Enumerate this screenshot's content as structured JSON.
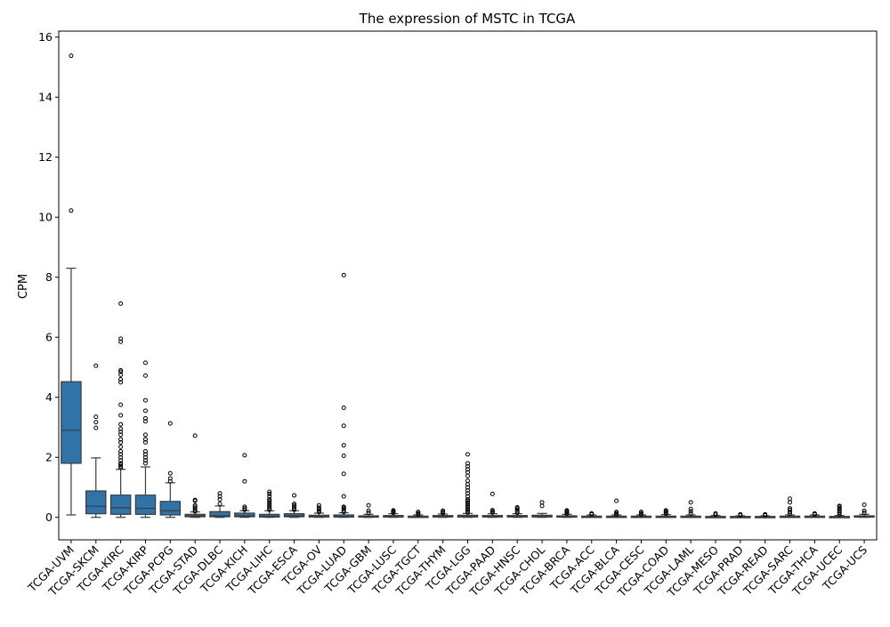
{
  "chart_data": {
    "type": "boxplot",
    "title": "The expression of MSTC in TCGA",
    "xlabel": "",
    "ylabel": "CPM",
    "ylim": [
      -0.75,
      16.2
    ],
    "yticks": [
      0,
      2,
      4,
      6,
      8,
      10,
      12,
      14,
      16
    ],
    "grid": false,
    "legend": "none",
    "box_color": "#2f73a8",
    "categories": [
      "TCGA-UVM",
      "TCGA-SKCM",
      "TCGA-KIRC",
      "TCGA-KIRP",
      "TCGA-PCPG",
      "TCGA-STAD",
      "TCGA-DLBC",
      "TCGA-KICH",
      "TCGA-LIHC",
      "TCGA-ESCA",
      "TCGA-OV",
      "TCGA-LUAD",
      "TCGA-GBM",
      "TCGA-LUSC",
      "TCGA-TGCT",
      "TCGA-THYM",
      "TCGA-LGG",
      "TCGA-PAAD",
      "TCGA-HNSC",
      "TCGA-CHOL",
      "TCGA-BRCA",
      "TCGA-ACC",
      "TCGA-BLCA",
      "TCGA-CESC",
      "TCGA-COAD",
      "TCGA-LAML",
      "TCGA-MESO",
      "TCGA-PRAD",
      "TCGA-READ",
      "TCGA-SARC",
      "TCGA-THCA",
      "TCGA-UCEC",
      "TCGA-UCS"
    ],
    "boxes": [
      {
        "min": 0.08,
        "q1": 1.8,
        "median": 2.9,
        "q3": 4.52,
        "max": 8.3,
        "outliers": [
          10.22,
          15.38
        ]
      },
      {
        "min": 0.0,
        "q1": 0.12,
        "median": 0.37,
        "q3": 0.88,
        "max": 1.98,
        "outliers": [
          2.98,
          3.17,
          3.35,
          5.05
        ]
      },
      {
        "min": 0.0,
        "q1": 0.1,
        "median": 0.32,
        "q3": 0.74,
        "max": 1.6,
        "outliers": [
          1.65,
          1.7,
          1.75,
          1.8,
          1.9,
          2.0,
          2.1,
          2.2,
          2.35,
          2.5,
          2.6,
          2.75,
          2.85,
          2.95,
          3.1,
          3.4,
          3.75,
          4.5,
          4.6,
          4.75,
          4.85,
          4.9,
          5.85,
          5.95,
          7.12
        ]
      },
      {
        "min": 0.0,
        "q1": 0.1,
        "median": 0.3,
        "q3": 0.74,
        "max": 1.68,
        "outliers": [
          1.8,
          1.9,
          2.0,
          2.1,
          2.2,
          2.5,
          2.6,
          2.75,
          3.2,
          3.3,
          3.55,
          3.9,
          4.72,
          5.15
        ]
      },
      {
        "min": 0.0,
        "q1": 0.08,
        "median": 0.22,
        "q3": 0.53,
        "max": 1.15,
        "outliers": [
          1.2,
          1.3,
          1.47,
          3.13
        ]
      },
      {
        "min": 0.0,
        "q1": 0.02,
        "median": 0.05,
        "q3": 0.1,
        "max": 0.18,
        "outliers": [
          0.2,
          0.25,
          0.3,
          0.35,
          0.4,
          0.55,
          0.58,
          2.72
        ]
      },
      {
        "min": 0.0,
        "q1": 0.02,
        "median": 0.05,
        "q3": 0.19,
        "max": 0.38,
        "outliers": [
          0.45,
          0.6,
          0.7,
          0.8
        ]
      },
      {
        "min": 0.0,
        "q1": 0.02,
        "median": 0.05,
        "q3": 0.14,
        "max": 0.22,
        "outliers": [
          0.25,
          0.3,
          0.35,
          1.2,
          2.07
        ]
      },
      {
        "min": 0.0,
        "q1": 0.01,
        "median": 0.04,
        "q3": 0.1,
        "max": 0.22,
        "outliers": [
          0.25,
          0.3,
          0.35,
          0.4,
          0.45,
          0.5,
          0.55,
          0.6,
          0.7,
          0.78,
          0.85
        ]
      },
      {
        "min": 0.0,
        "q1": 0.02,
        "median": 0.05,
        "q3": 0.12,
        "max": 0.22,
        "outliers": [
          0.25,
          0.3,
          0.35,
          0.4,
          0.45,
          0.73
        ]
      },
      {
        "min": 0.0,
        "q1": 0.01,
        "median": 0.03,
        "q3": 0.07,
        "max": 0.14,
        "outliers": [
          0.18,
          0.22,
          0.27,
          0.32,
          0.4
        ]
      },
      {
        "min": 0.0,
        "q1": 0.01,
        "median": 0.03,
        "q3": 0.08,
        "max": 0.15,
        "outliers": [
          0.18,
          0.22,
          0.28,
          0.32,
          0.35,
          0.7,
          1.45,
          2.05,
          2.4,
          3.05,
          3.65,
          8.07
        ]
      },
      {
        "min": 0.0,
        "q1": 0.01,
        "median": 0.02,
        "q3": 0.05,
        "max": 0.1,
        "outliers": [
          0.15,
          0.22,
          0.4
        ]
      },
      {
        "min": 0.0,
        "q1": 0.01,
        "median": 0.03,
        "q3": 0.06,
        "max": 0.12,
        "outliers": [
          0.15,
          0.18,
          0.2,
          0.23
        ]
      },
      {
        "min": 0.0,
        "q1": 0.01,
        "median": 0.02,
        "q3": 0.04,
        "max": 0.08,
        "outliers": [
          0.1,
          0.14,
          0.18
        ]
      },
      {
        "min": 0.0,
        "q1": 0.01,
        "median": 0.03,
        "q3": 0.06,
        "max": 0.11,
        "outliers": [
          0.14,
          0.18,
          0.22
        ]
      },
      {
        "min": 0.0,
        "q1": 0.01,
        "median": 0.03,
        "q3": 0.07,
        "max": 0.13,
        "outliers": [
          0.16,
          0.2,
          0.25,
          0.3,
          0.35,
          0.4,
          0.45,
          0.5,
          0.55,
          0.6,
          0.7,
          0.8,
          0.9,
          1.0,
          1.1,
          1.22,
          1.38,
          1.5,
          1.6,
          1.7,
          1.8,
          2.1
        ]
      },
      {
        "min": 0.0,
        "q1": 0.01,
        "median": 0.03,
        "q3": 0.06,
        "max": 0.12,
        "outliers": [
          0.16,
          0.2,
          0.24,
          0.78
        ]
      },
      {
        "min": 0.0,
        "q1": 0.01,
        "median": 0.03,
        "q3": 0.06,
        "max": 0.12,
        "outliers": [
          0.15,
          0.2,
          0.25,
          0.3,
          0.33
        ]
      },
      {
        "min": 0.0,
        "q1": 0.01,
        "median": 0.03,
        "q3": 0.07,
        "max": 0.13,
        "outliers": [
          0.38,
          0.5
        ]
      },
      {
        "min": 0.0,
        "q1": 0.01,
        "median": 0.02,
        "q3": 0.05,
        "max": 0.1,
        "outliers": [
          0.13,
          0.17,
          0.2,
          0.23
        ]
      },
      {
        "min": 0.0,
        "q1": 0.0,
        "median": 0.02,
        "q3": 0.04,
        "max": 0.08,
        "outliers": [
          0.1,
          0.13
        ]
      },
      {
        "min": 0.0,
        "q1": 0.0,
        "median": 0.02,
        "q3": 0.04,
        "max": 0.08,
        "outliers": [
          0.1,
          0.14,
          0.18,
          0.55
        ]
      },
      {
        "min": 0.0,
        "q1": 0.0,
        "median": 0.02,
        "q3": 0.04,
        "max": 0.08,
        "outliers": [
          0.1,
          0.14,
          0.18
        ]
      },
      {
        "min": 0.0,
        "q1": 0.0,
        "median": 0.02,
        "q3": 0.04,
        "max": 0.09,
        "outliers": [
          0.12,
          0.16,
          0.2,
          0.23
        ]
      },
      {
        "min": 0.0,
        "q1": 0.0,
        "median": 0.02,
        "q3": 0.04,
        "max": 0.08,
        "outliers": [
          0.12,
          0.2,
          0.28,
          0.5
        ]
      },
      {
        "min": 0.0,
        "q1": 0.0,
        "median": 0.01,
        "q3": 0.03,
        "max": 0.06,
        "outliers": [
          0.09,
          0.13
        ]
      },
      {
        "min": 0.0,
        "q1": 0.0,
        "median": 0.01,
        "q3": 0.03,
        "max": 0.05,
        "outliers": [
          0.07,
          0.1
        ]
      },
      {
        "min": 0.0,
        "q1": 0.0,
        "median": 0.01,
        "q3": 0.03,
        "max": 0.05,
        "outliers": [
          0.07,
          0.1
        ]
      },
      {
        "min": 0.0,
        "q1": 0.0,
        "median": 0.02,
        "q3": 0.04,
        "max": 0.08,
        "outliers": [
          0.12,
          0.18,
          0.25,
          0.3,
          0.5,
          0.62
        ]
      },
      {
        "min": 0.0,
        "q1": 0.0,
        "median": 0.02,
        "q3": 0.04,
        "max": 0.08,
        "outliers": [
          0.1,
          0.13
        ]
      },
      {
        "min": 0.0,
        "q1": 0.0,
        "median": 0.01,
        "q3": 0.03,
        "max": 0.06,
        "outliers": [
          0.1,
          0.15,
          0.2,
          0.25,
          0.3,
          0.35,
          0.38
        ]
      },
      {
        "min": 0.0,
        "q1": 0.01,
        "median": 0.02,
        "q3": 0.05,
        "max": 0.1,
        "outliers": [
          0.15,
          0.22,
          0.42
        ]
      }
    ]
  }
}
